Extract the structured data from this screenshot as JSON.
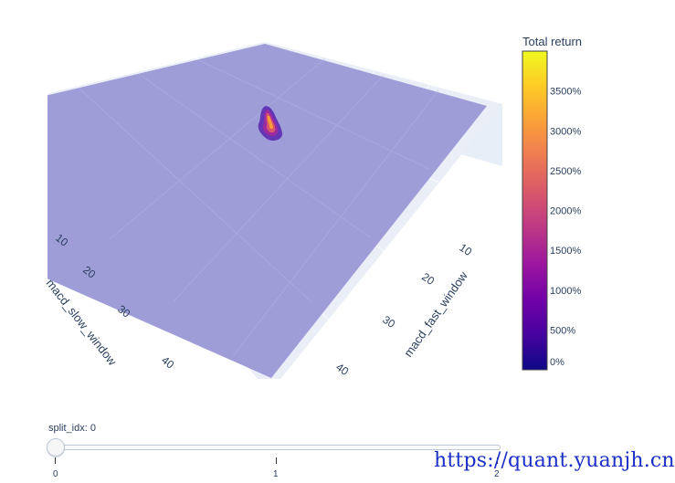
{
  "chart_data": {
    "type": "surface",
    "x_axis": {
      "label": "macd_fast_window",
      "ticks": [
        "10",
        "20",
        "30",
        "40"
      ]
    },
    "y_axis": {
      "label": "macd_slow_window",
      "ticks": [
        "10",
        "20",
        "30",
        "40"
      ]
    },
    "z_range": [
      0,
      4000
    ],
    "colorbar": {
      "title": "Total return",
      "ticks": [
        "0%",
        "500%",
        "1000%",
        "1500%",
        "2000%",
        "2500%",
        "3000%",
        "3500%"
      ],
      "range": [
        0,
        4000
      ],
      "colorscale": [
        "#0d0887",
        "#46039f",
        "#7201a8",
        "#9c179e",
        "#bd3786",
        "#d8576b",
        "#ed7953",
        "#fb9f3a",
        "#fdca26",
        "#f0f921"
      ]
    },
    "surface_base_color": "#9b9ad6",
    "peak_region": {
      "fast_window_range": [
        12,
        16
      ],
      "slow_window_range": [
        18,
        26
      ],
      "max_total_return_pct": 3900
    }
  },
  "slider": {
    "label": "split_idx: 0",
    "value": 0,
    "ticks": [
      "0",
      "1",
      "2"
    ]
  },
  "watermark": "https://quant.yuanjh.cn"
}
